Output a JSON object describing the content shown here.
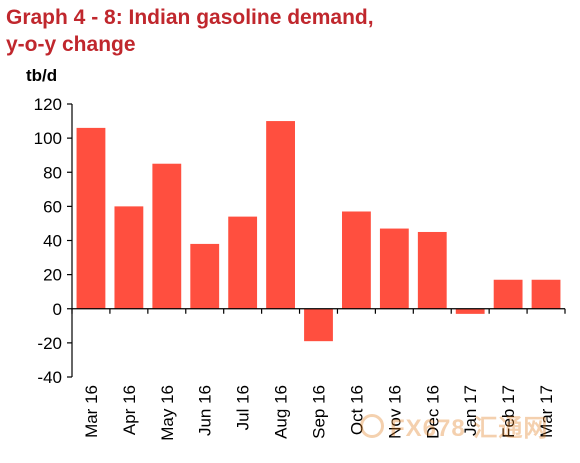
{
  "chart_data": {
    "type": "bar",
    "title": "Graph 4 - 8: Indian gasoline demand,",
    "title_line2": "y-o-y change",
    "ylabel": "tb/d",
    "xlabel": "",
    "ylim": [
      -40,
      120
    ],
    "yticks": [
      -40,
      -20,
      0,
      20,
      40,
      60,
      80,
      100,
      120
    ],
    "grid": false,
    "categories": [
      "Mar 16",
      "Apr 16",
      "May 16",
      "Jun 16",
      "Jul 16",
      "Aug 16",
      "Sep 16",
      "Oct 16",
      "Nov 16",
      "Dec 16",
      "Jan 17",
      "Feb 17",
      "Mar 17"
    ],
    "values": [
      106,
      60,
      85,
      38,
      54,
      110,
      -19,
      57,
      47,
      45,
      -3,
      17,
      17
    ],
    "bar_color": "#ff4f3f",
    "title_color": "#c0272d"
  },
  "watermark": {
    "text": "FX678 汇通网",
    "icon": "fx678-logo-icon"
  }
}
